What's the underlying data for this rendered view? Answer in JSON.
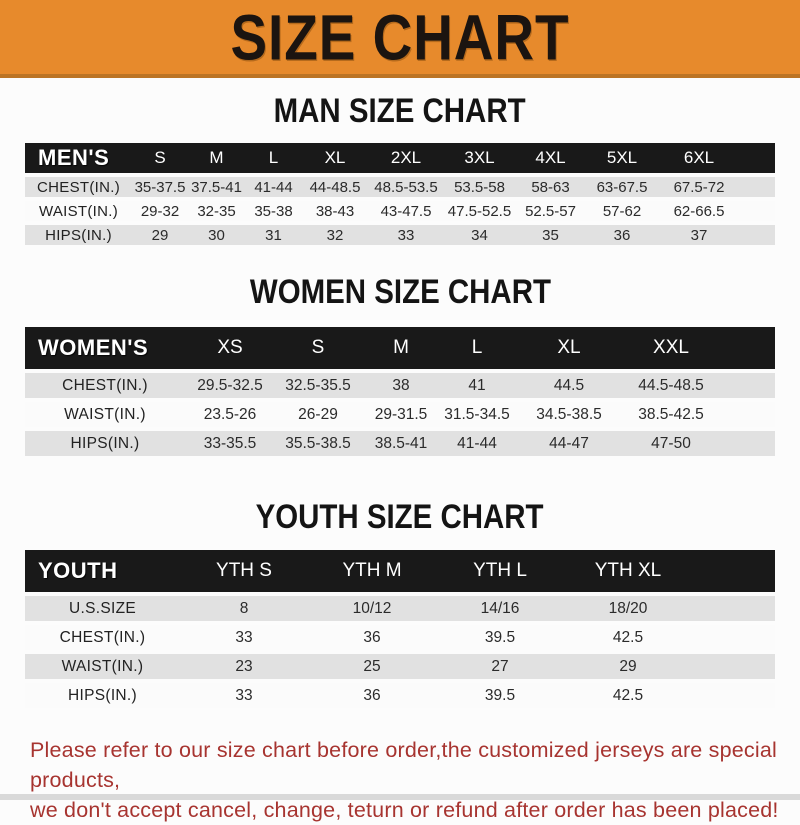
{
  "colors": {
    "banner_bg": "#e78a2c",
    "band_bg": "#191919",
    "row_shade": "#e1e1e1",
    "notice_text": "#a73430"
  },
  "banner": {
    "title": "SIZE CHART"
  },
  "sections": [
    {
      "title": "MAN SIZE CHART",
      "table": {
        "header_label": "MEN'S",
        "columns": [
          "S",
          "M",
          "L",
          "XL",
          "2XL",
          "3XL",
          "4XL",
          "5XL",
          "6XL"
        ],
        "rows": [
          {
            "label": "CHEST(IN.)",
            "values": [
              "35-37.5",
              "37.5-41",
              "41-44",
              "44-48.5",
              "48.5-53.5",
              "53.5-58",
              "58-63",
              "63-67.5",
              "67.5-72"
            ]
          },
          {
            "label": "WAIST(IN.)",
            "values": [
              "29-32",
              "32-35",
              "35-38",
              "38-43",
              "43-47.5",
              "47.5-52.5",
              "52.5-57",
              "57-62",
              "62-66.5"
            ]
          },
          {
            "label": "HIPS(IN.)",
            "values": [
              "29",
              "30",
              "31",
              "32",
              "33",
              "34",
              "35",
              "36",
              "37"
            ]
          }
        ]
      }
    },
    {
      "title": "WOMEN SIZE CHART",
      "table": {
        "header_label": "WOMEN'S",
        "columns": [
          "XS",
          "S",
          "M",
          "L",
          "XL",
          "XXL"
        ],
        "rows": [
          {
            "label": "CHEST(IN.)",
            "values": [
              "29.5-32.5",
              "32.5-35.5",
              "38",
              "41",
              "44.5",
              "44.5-48.5"
            ]
          },
          {
            "label": "WAIST(IN.)",
            "values": [
              "23.5-26",
              "26-29",
              "29-31.5",
              "31.5-34.5",
              "34.5-38.5",
              "38.5-42.5"
            ]
          },
          {
            "label": "HIPS(IN.)",
            "values": [
              "33-35.5",
              "35.5-38.5",
              "38.5-41",
              "41-44",
              "44-47",
              "47-50"
            ]
          }
        ]
      }
    },
    {
      "title": "YOUTH SIZE CHART",
      "table": {
        "header_label": "YOUTH",
        "columns": [
          "YTH S",
          "YTH M",
          "YTH L",
          "YTH XL"
        ],
        "rows": [
          {
            "label": "U.S.SIZE",
            "values": [
              "8",
              "10/12",
              "14/16",
              "18/20"
            ]
          },
          {
            "label": "CHEST(IN.)",
            "values": [
              "33",
              "36",
              "39.5",
              "42.5"
            ]
          },
          {
            "label": "WAIST(IN.)",
            "values": [
              "23",
              "25",
              "27",
              "29"
            ]
          },
          {
            "label": "HIPS(IN.)",
            "values": [
              "33",
              "36",
              "39.5",
              "42.5"
            ]
          }
        ]
      }
    }
  ],
  "footer": {
    "line1": "Please refer to our size chart before order,the customized jerseys are special products,",
    "line2": "we don't accept cancel, change, teturn or refund after order has been placed!"
  }
}
